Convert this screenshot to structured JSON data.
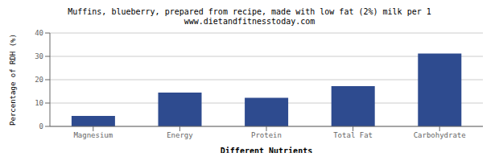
{
  "chart_data": {
    "type": "bar",
    "title": "Muffins, blueberry, prepared from recipe, made with low fat (2%) milk per 1",
    "subtitle": "www.dietandfitnesstoday.com",
    "categories": [
      "Magnesium",
      "Energy",
      "Protein",
      "Total Fat",
      "Carbohydrate"
    ],
    "values": [
      4.5,
      14.5,
      12.2,
      17.2,
      31.2
    ],
    "color": "#2e4b8f",
    "xlabel": "Different Nutrients",
    "ylabel": "Percentage of RDH (%)",
    "ylim": [
      0,
      40
    ],
    "yticks": [
      0,
      10,
      20,
      30,
      40
    ],
    "grid": true
  }
}
